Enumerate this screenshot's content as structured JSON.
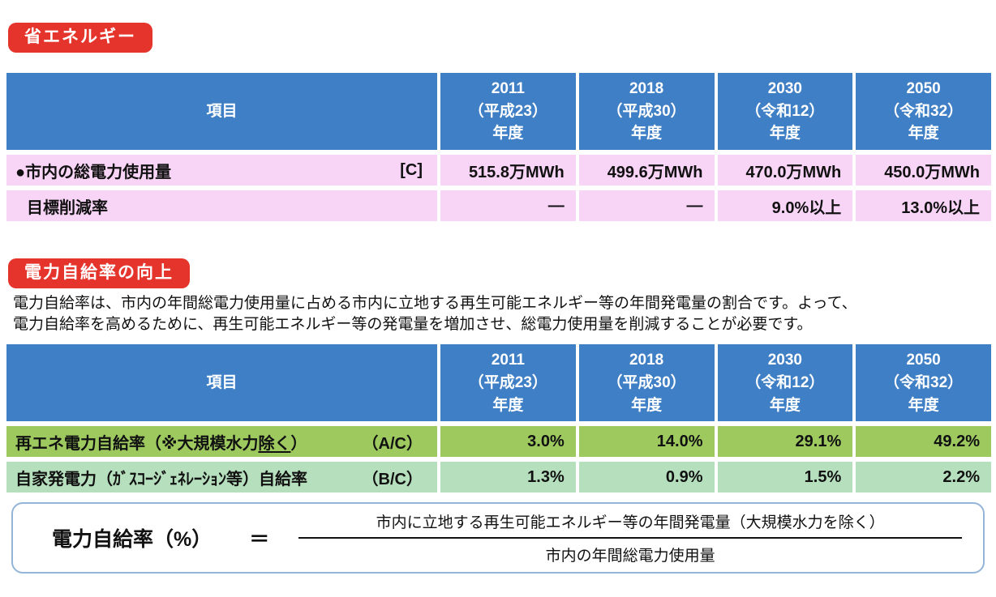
{
  "colors": {
    "badge_red": "#E5342B",
    "table_header_blue": "#3F7FC5",
    "row_pink": "#F8D4F6",
    "row_green_dark": "#9DC95F",
    "row_green_light": "#B6DFBE",
    "formula_box_border": "#93B5D7"
  },
  "section_energy_saving": {
    "badge": "省エネルギー",
    "table": {
      "header": {
        "item": "項目",
        "years": [
          "2011\n（平成23）\n年度",
          "2018\n（平成30）\n年度",
          "2030\n（令和12）\n年度",
          "2050\n（令和32）\n年度"
        ]
      },
      "rows": [
        {
          "label": "●市内の総電力使用量",
          "code": "[C]",
          "values": [
            "515.8万MWh",
            "499.6万MWh",
            "470.0万MWh",
            "450.0万MWh"
          ]
        },
        {
          "label": "目標削減率",
          "code": "",
          "values": [
            "―",
            "―",
            "9.0%以上",
            "13.0%以上"
          ]
        }
      ]
    }
  },
  "section_self_sufficiency": {
    "badge": "電力自給率の向上",
    "description_line1": "電力自給率は、市内の年間総電力使用量に占める市内に立地する再生可能エネルギー等の年間発電量の割合です。よって、",
    "description_line2": "電力自給率を高めるために、再生可能エネルギー等の発電量を増加させ、総電力使用量を削減することが必要です。",
    "table": {
      "header": {
        "item": "項目",
        "years": [
          "2011\n（平成23）\n年度",
          "2018\n（平成30）\n年度",
          "2030\n（令和12）\n年度",
          "2050\n（令和32）\n年度"
        ]
      },
      "rows": [
        {
          "label_pre": "再エネ電力自給率（※大規模水力",
          "label_underlined": "除く",
          "label_post": "）",
          "code": "（A/C）",
          "values": [
            "3.0%",
            "14.0%",
            "29.1%",
            "49.2%"
          ]
        },
        {
          "label": "自家発電力（ｶﾞｽｺｰｼﾞｪﾈﾚｰｼｮﾝ等）自給率",
          "code": "（B/C）",
          "values": [
            "1.3%",
            "0.9%",
            "1.5%",
            "2.2%"
          ]
        }
      ]
    }
  },
  "formula": {
    "lhs": "電力自給率（%）",
    "equals": "＝",
    "numerator": "市内に立地する再生可能エネルギー等の年間発電量（大規模水力を除く）",
    "denominator": "市内の年間総電力使用量"
  }
}
